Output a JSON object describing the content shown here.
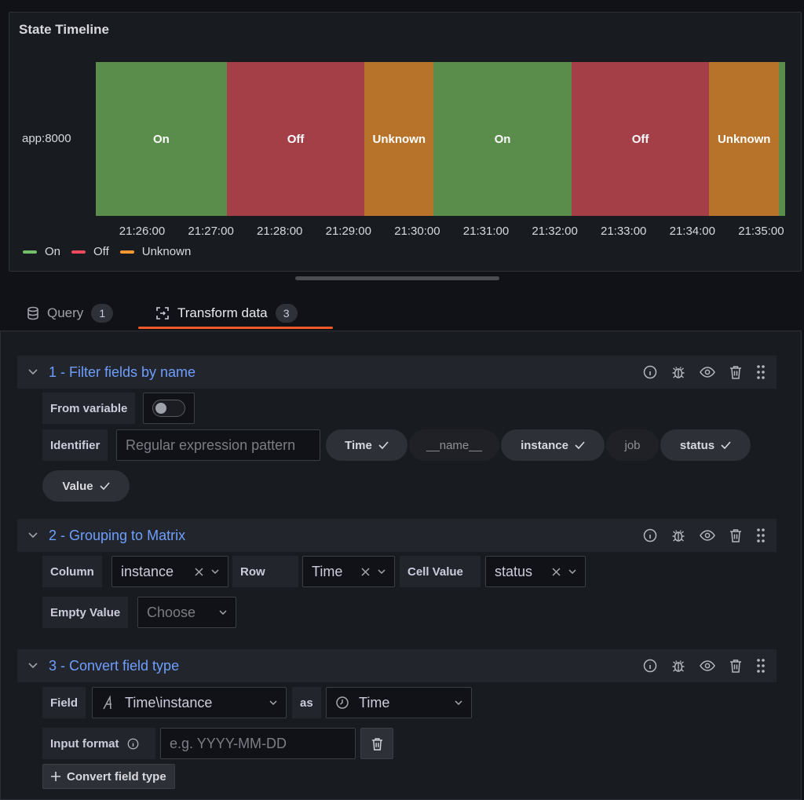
{
  "panel": {
    "title": "State Timeline",
    "row_label": "app:8000",
    "segments": [
      {
        "label": "On",
        "state": "on",
        "width_pct": 19.0
      },
      {
        "label": "Off",
        "state": "off",
        "width_pct": 20.0
      },
      {
        "label": "Unknown",
        "state": "unknown",
        "width_pct": 10.0
      },
      {
        "label": "On",
        "state": "on",
        "width_pct": 20.0
      },
      {
        "label": "Off",
        "state": "off",
        "width_pct": 20.0
      },
      {
        "label": "Unknown",
        "state": "unknown",
        "width_pct": 10.1
      },
      {
        "label": "",
        "state": "on",
        "width_pct": 0.9
      }
    ],
    "ticks": [
      "21:26:00",
      "21:27:00",
      "21:28:00",
      "21:29:00",
      "21:30:00",
      "21:31:00",
      "21:32:00",
      "21:33:00",
      "21:34:00",
      "21:35:00"
    ],
    "legend": [
      {
        "label": "On",
        "color": "#73bf69"
      },
      {
        "label": "Off",
        "color": "#f2495c"
      },
      {
        "label": "Unknown",
        "color": "#ff9830"
      }
    ],
    "colors": {
      "on": "#5a8c4b",
      "off": "#a53f47",
      "unknown": "#b8732a"
    }
  },
  "tabs": {
    "query": {
      "label": "Query",
      "count": "1"
    },
    "transform": {
      "label": "Transform data",
      "count": "3"
    }
  },
  "t1": {
    "title": "1 - Filter fields by name",
    "from_variable_label": "From variable",
    "identifier_label": "Identifier",
    "identifier_placeholder": "Regular expression pattern",
    "fields": [
      {
        "label": "Time",
        "selected": true
      },
      {
        "label": "__name__",
        "selected": false
      },
      {
        "label": "instance",
        "selected": true
      },
      {
        "label": "job",
        "selected": false
      },
      {
        "label": "status",
        "selected": true
      },
      {
        "label": "Value",
        "selected": true
      }
    ]
  },
  "t2": {
    "title": "2 - Grouping to Matrix",
    "column_label": "Column",
    "column_value": "instance",
    "row_label": "Row",
    "row_value": "Time",
    "cell_label": "Cell Value",
    "cell_value": "status",
    "empty_label": "Empty Value",
    "empty_placeholder": "Choose"
  },
  "t3": {
    "title": "3 - Convert field type",
    "field_label": "Field",
    "field_value": "Time\\instance",
    "as_label": "as",
    "type_value": "Time",
    "input_format_label": "Input format",
    "input_format_placeholder": "e.g. YYYY-MM-DD",
    "add_button": "Convert field type"
  }
}
